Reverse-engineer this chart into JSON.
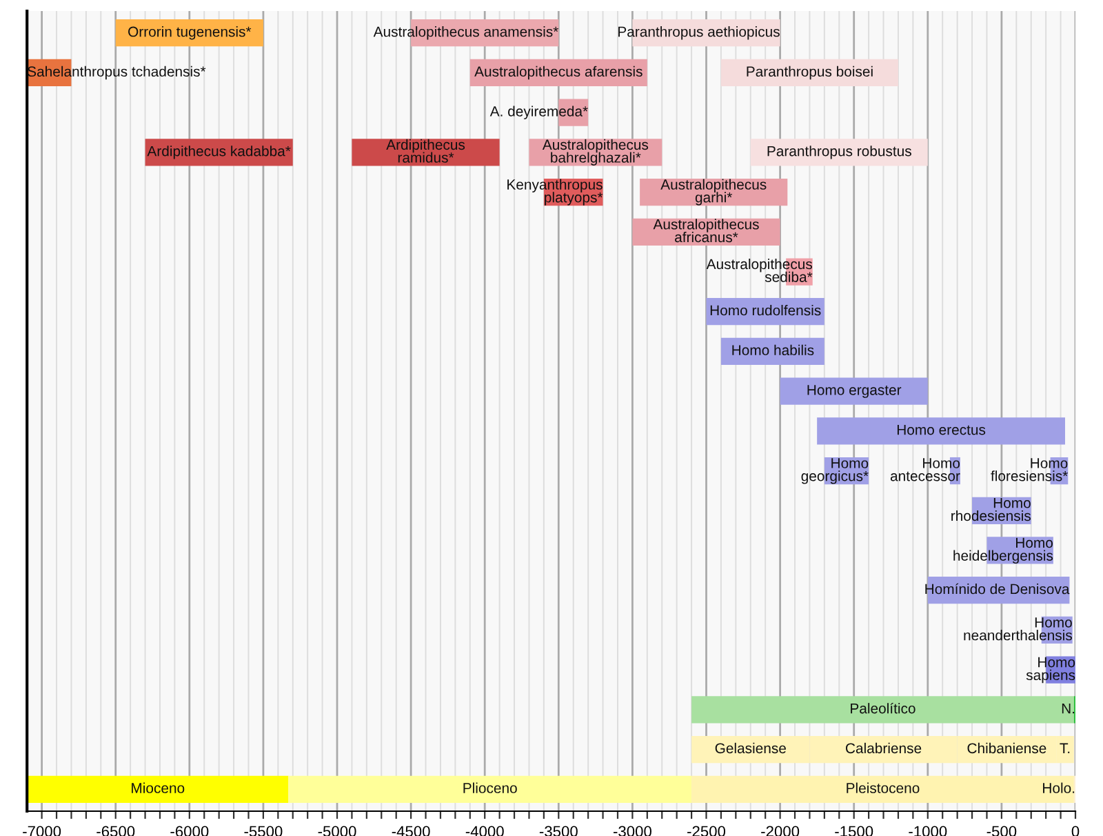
{
  "chart_data": {
    "type": "bar",
    "orientation": "horizontal",
    "categories": [
      null,
      null,
      null,
      null,
      null,
      null,
      null,
      null,
      null,
      null,
      null,
      null,
      null,
      null,
      null,
      null,
      null,
      null,
      null,
      null
    ],
    "series": [
      {
        "base": [
          -6500,
          -7100,
          -3500,
          -6300,
          -3600,
          -3000,
          -1960,
          -2500,
          -2400,
          -2000,
          -1750,
          -1700,
          -700,
          -600,
          -1000,
          -230,
          -200,
          -2600,
          -2600,
          -7100
        ],
        "values": [
          1000,
          300,
          200,
          1000,
          400,
          1000,
          180,
          800,
          700,
          1000,
          1680,
          300,
          400,
          450,
          960,
          210,
          200,
          2590,
          800,
          1770
        ],
        "colors": [
          "#ffb347",
          "#e8733f",
          "#e8a0a8",
          "#cc4a4a",
          "#e05c5c",
          "#e8a0a8",
          "#f0a0a8",
          "#a0a0e6",
          "#a0a0e6",
          "#a0a0e6",
          "#a0a0e6",
          "#a0a0e6",
          "#a0a0e6",
          "#a0a0e6",
          "#a0a0e6",
          "#a0a0e6",
          "#8080e0",
          "#a8e0a0",
          "#fff3b8",
          "#ffff00"
        ],
        "value_labels": [
          "Orrorin tugenensis*",
          "Sahelanthropus tchadensis*",
          "A. deyiremeda*",
          "Ardipithecus kadabba*",
          "Kenyanthropus\nplatyops*",
          "Australopithecus\nafricanus*",
          "Australopithecus\nsediba*",
          "Homo rudolfensis",
          "Homo habilis",
          "Homo ergaster",
          "Homo erectus",
          "Homo\ngeorgicus*",
          "Homo\nrhodesiensis",
          "Homo\nheidelbergensis",
          "Homínido de Denisova",
          "Homo\nneanderthalensis",
          "Homo\nsapiens",
          "Paleolítico",
          "Gelasiense",
          "Mioceno"
        ]
      },
      {
        "base": [
          -4500,
          -4100,
          null,
          -4900,
          -2950,
          null,
          null,
          null,
          null,
          null,
          null,
          -850,
          null,
          null,
          null,
          null,
          null,
          -10,
          -1800,
          -5330
        ],
        "values": [
          1000,
          1200,
          null,
          1000,
          1000,
          null,
          null,
          null,
          null,
          null,
          null,
          70,
          null,
          null,
          null,
          null,
          null,
          10,
          1000,
          2730
        ],
        "colors": [
          "#eba8ae",
          "#e8a0a8",
          null,
          "#cc4a4a",
          "#e8a0a8",
          null,
          null,
          null,
          null,
          null,
          null,
          "#a0a0e6",
          null,
          null,
          null,
          null,
          null,
          "#30c040",
          "#fff3b8",
          "#ffff99"
        ],
        "value_labels": [
          "Australopithecus anamensis*",
          "Australopithecus afarensis",
          null,
          "Ardipithecus\nramidus*",
          "Australopithecus\ngarhi*",
          null,
          null,
          null,
          null,
          null,
          null,
          "Homo\nantecessor",
          null,
          null,
          null,
          null,
          null,
          "N.",
          "Calabriense",
          "Plioceno"
        ]
      },
      {
        "base": [
          -3000,
          -2400,
          null,
          -3700,
          null,
          null,
          null,
          null,
          null,
          null,
          null,
          -170,
          null,
          null,
          null,
          null,
          null,
          null,
          -800,
          -2600
        ],
        "values": [
          1000,
          1200,
          null,
          900,
          null,
          null,
          null,
          null,
          null,
          null,
          null,
          120,
          null,
          null,
          null,
          null,
          null,
          null,
          670,
          2590
        ],
        "colors": [
          "#f5dcdc",
          "#f5dcdc",
          null,
          "#e8a0a8",
          null,
          null,
          null,
          null,
          null,
          null,
          null,
          "#a0a0e6",
          null,
          null,
          null,
          null,
          null,
          null,
          "#fff3b8",
          "#fff3b0"
        ],
        "value_labels": [
          "Paranthropus aethiopicus",
          "Paranthropus boisei",
          null,
          "Australopithecus\nbahrelghazali*",
          null,
          null,
          null,
          null,
          null,
          null,
          null,
          "Homo\nfloresiensis*",
          null,
          null,
          null,
          null,
          null,
          null,
          "Chibaniense",
          "Pleistoceno"
        ]
      },
      {
        "base": [
          null,
          null,
          null,
          -2200,
          null,
          null,
          null,
          null,
          null,
          null,
          null,
          null,
          null,
          null,
          null,
          null,
          null,
          null,
          -130,
          -10
        ],
        "values": [
          null,
          null,
          null,
          1200,
          null,
          null,
          null,
          null,
          null,
          null,
          null,
          null,
          null,
          null,
          null,
          null,
          null,
          null,
          120,
          10
        ],
        "colors": [
          null,
          null,
          null,
          "#f7e0e0",
          null,
          null,
          null,
          null,
          null,
          null,
          null,
          null,
          null,
          null,
          null,
          null,
          null,
          null,
          "#fff3b8",
          "#fdf0d0"
        ],
        "value_labels": [
          null,
          null,
          null,
          "Paranthropus robustus",
          null,
          null,
          null,
          null,
          null,
          null,
          null,
          null,
          null,
          null,
          null,
          null,
          null,
          null,
          "T.",
          "Holo."
        ]
      }
    ],
    "xlim": [
      -7100,
      0
    ],
    "xticks": [
      -7000,
      {
        "value": -6900,
        "label": null
      },
      {
        "value": -6800,
        "label": null
      },
      {
        "value": -6700,
        "label": null
      },
      {
        "value": -6600,
        "label": null
      },
      -6500,
      {
        "value": -6400,
        "label": null
      },
      {
        "value": -6300,
        "label": null
      },
      {
        "value": -6200,
        "label": null
      },
      {
        "value": -6100,
        "label": null
      },
      -6000,
      {
        "value": -5900,
        "label": null
      },
      {
        "value": -5800,
        "label": null
      },
      {
        "value": -5700,
        "label": null
      },
      {
        "value": -5600,
        "label": null
      },
      -5500,
      {
        "value": -5400,
        "label": null
      },
      {
        "value": -5300,
        "label": null
      },
      {
        "value": -5200,
        "label": null
      },
      {
        "value": -5100,
        "label": null
      },
      -5000,
      {
        "value": -4900,
        "label": null
      },
      {
        "value": -4800,
        "label": null
      },
      {
        "value": -4700,
        "label": null
      },
      {
        "value": -4600,
        "label": null
      },
      -4500,
      {
        "value": -4400,
        "label": null
      },
      {
        "value": -4300,
        "label": null
      },
      {
        "value": -4200,
        "label": null
      },
      {
        "value": -4100,
        "label": null
      },
      -4000,
      {
        "value": -3900,
        "label": null
      },
      {
        "value": -3800,
        "label": null
      },
      {
        "value": -3700,
        "label": null
      },
      {
        "value": -3600,
        "label": null
      },
      -3500,
      {
        "value": -3400,
        "label": null
      },
      {
        "value": -3300,
        "label": null
      },
      {
        "value": -3200,
        "label": null
      },
      {
        "value": -3100,
        "label": null
      },
      -3000,
      {
        "value": -2900,
        "label": null
      },
      {
        "value": -2800,
        "label": null
      },
      {
        "value": -2700,
        "label": null
      },
      {
        "value": -2600,
        "label": null
      },
      -2500,
      {
        "value": -2400,
        "label": null
      },
      {
        "value": -2300,
        "label": null
      },
      {
        "value": -2200,
        "label": null
      },
      {
        "value": -2100,
        "label": null
      },
      -2000,
      {
        "value": -1900,
        "label": null
      },
      {
        "value": -1800,
        "label": null
      },
      {
        "value": -1700,
        "label": null
      },
      {
        "value": -1600,
        "label": null
      },
      -1500,
      {
        "value": -1400,
        "label": null
      },
      {
        "value": -1300,
        "label": null
      },
      {
        "value": -1200,
        "label": null
      },
      {
        "value": -1100,
        "label": null
      },
      -1000,
      {
        "value": -900,
        "label": null
      },
      {
        "value": -800,
        "label": null
      },
      {
        "value": -700,
        "label": null
      },
      {
        "value": -600,
        "label": null
      },
      -500,
      {
        "value": -400,
        "label": null
      },
      {
        "value": -300,
        "label": null
      },
      {
        "value": -200,
        "label": null
      },
      {
        "value": -100,
        "label": null
      },
      0
    ],
    "grid": "x",
    "tick_labels": "x"
  }
}
